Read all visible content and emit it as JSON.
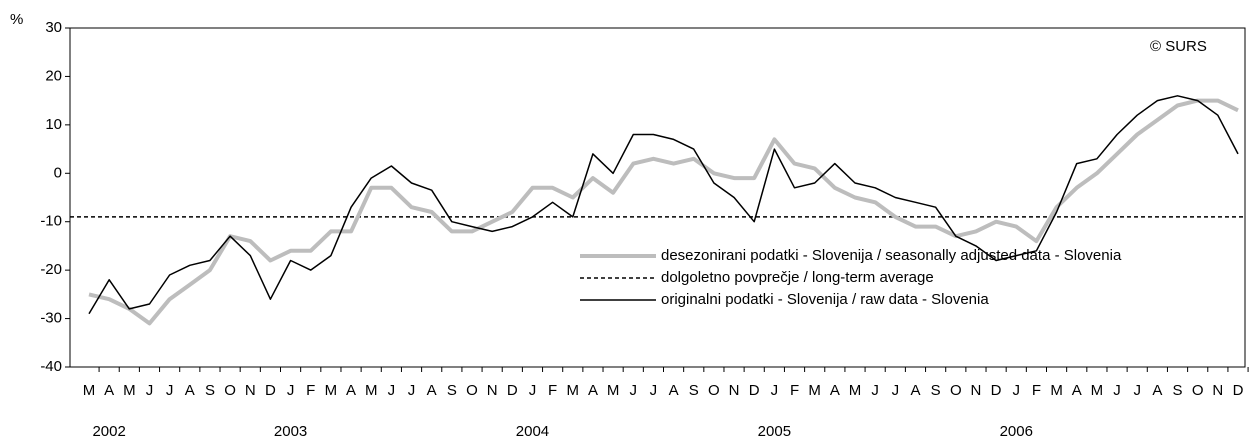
{
  "chart_data": {
    "type": "line",
    "y_label": "%",
    "copyright": "© SURS",
    "categories": [
      "M",
      "A",
      "M",
      "J",
      "J",
      "A",
      "S",
      "O",
      "N",
      "D",
      "J",
      "F",
      "M",
      "A",
      "M",
      "J",
      "J",
      "A",
      "S",
      "O",
      "N",
      "D",
      "J",
      "F",
      "M",
      "A",
      "M",
      "J",
      "J",
      "A",
      "S",
      "O",
      "N",
      "D",
      "J",
      "F",
      "M",
      "A",
      "M",
      "J",
      "J",
      "A",
      "S",
      "O",
      "N",
      "D",
      "J",
      "F",
      "M",
      "A",
      "M",
      "J",
      "J",
      "A",
      "S",
      "O",
      "N",
      "D"
    ],
    "years": [
      null,
      "2002",
      null,
      null,
      null,
      null,
      null,
      null,
      null,
      null,
      "2003",
      null,
      null,
      null,
      null,
      null,
      null,
      null,
      null,
      null,
      null,
      null,
      "2004",
      null,
      null,
      null,
      null,
      null,
      null,
      null,
      null,
      null,
      null,
      null,
      "2005",
      null,
      null,
      null,
      null,
      null,
      null,
      null,
      null,
      null,
      null,
      null,
      "2006",
      null,
      null,
      null,
      null,
      null,
      null,
      null,
      null,
      null,
      null,
      null
    ],
    "series": [
      {
        "name": "desezonirani podatki - Slovenija / seasonally adjusted data - Slovenia",
        "color": "#bdbdbd",
        "values": [
          -25,
          -26,
          -28,
          -31,
          -26,
          -23,
          -20,
          -13,
          -14,
          -18,
          -16,
          -16,
          -12,
          -12,
          -3,
          -3,
          -7,
          -8,
          -12,
          -12,
          -10,
          -8,
          -3,
          -3,
          -5,
          -1,
          -4,
          2,
          3,
          2,
          3,
          0,
          -1,
          -1,
          7,
          2,
          1,
          -3,
          -5,
          -6,
          -9,
          -11,
          -11,
          -13,
          -12,
          -10,
          -11,
          -14,
          -7,
          -3,
          0,
          4,
          8,
          11,
          14,
          15,
          15,
          13
        ]
      },
      {
        "name": "originalni podatki - Slovenija / raw data - Slovenia",
        "color": "#000000",
        "values": [
          -29,
          -22,
          -28,
          -27,
          -21,
          -19,
          -18,
          -13,
          -17,
          -26,
          -18,
          -20,
          -17,
          -7,
          -1,
          1.5,
          -2,
          -3.5,
          -10,
          -11,
          -12,
          -11,
          -9,
          -6,
          -9,
          4,
          0,
          8,
          8,
          7,
          5,
          -2,
          -5,
          -10,
          5,
          -3,
          -2,
          2,
          -2,
          -3,
          -5,
          -6,
          -7,
          -13,
          -15,
          -18,
          -17,
          -16,
          -8,
          2,
          3,
          8,
          12,
          15,
          16,
          15,
          12,
          4
        ]
      }
    ],
    "reference_line": {
      "name": "dolgoletno povprečje / long-term average",
      "value": -9,
      "color": "#000000",
      "style": "dashed"
    },
    "ylim": [
      -40,
      30
    ],
    "yticks": [
      -40,
      -30,
      -20,
      -10,
      0,
      10,
      20,
      30
    ]
  }
}
